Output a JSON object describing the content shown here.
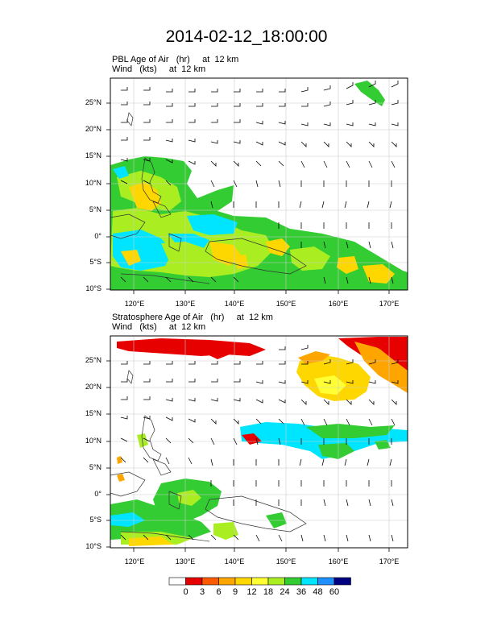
{
  "title": "2014-02-12_18:00:00",
  "panels": [
    {
      "id": "pbl",
      "label_line1": "PBL Age of Air   (hr)     at  12 km",
      "label_line2": "Wind   (kts)     at  12 km"
    },
    {
      "id": "strat",
      "label_line1": "Stratosphere Age of Air   (hr)     at  12 km",
      "label_line2": "Wind   (kts)     at  12 km"
    }
  ],
  "axes": {
    "lat_labels": [
      "25°N",
      "20°N",
      "15°N",
      "10°N",
      "5°N",
      "0°",
      "5°S",
      "10°S"
    ],
    "lon_labels": [
      "120°E",
      "130°E",
      "140°E",
      "150°E",
      "160°E",
      "170°E"
    ],
    "lat_range": [
      -10,
      29
    ],
    "lon_range": [
      116,
      173
    ]
  },
  "colorbar": {
    "labels": [
      "0",
      "3",
      "6",
      "9",
      "12",
      "18",
      "24",
      "36",
      "48",
      "60"
    ],
    "colors": [
      "#ffffff",
      "#e60000",
      "#ff5a00",
      "#ffa500",
      "#ffd700",
      "#ffff33",
      "#aaee22",
      "#33cc33",
      "#00e5ff",
      "#1e90ff",
      "#000080"
    ]
  }
}
